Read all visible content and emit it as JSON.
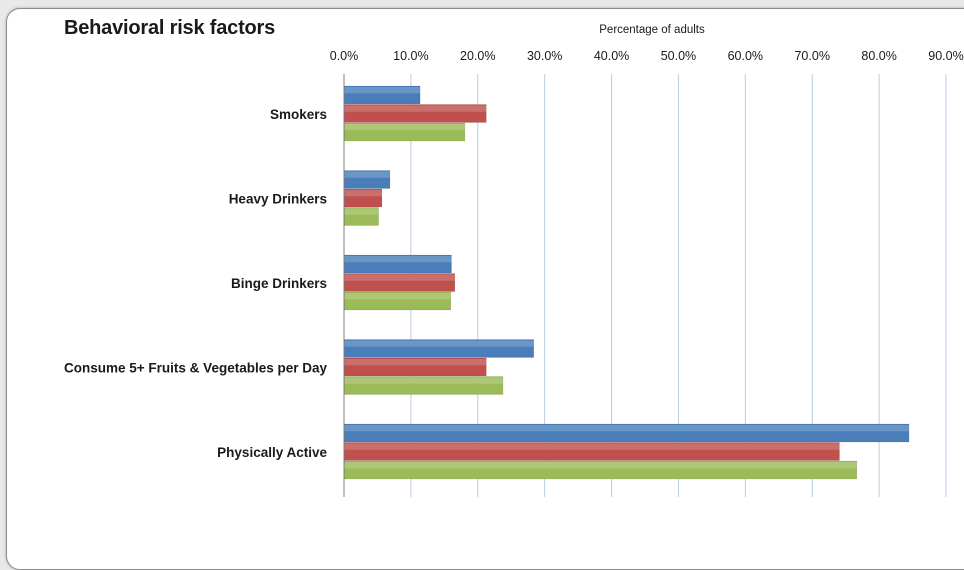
{
  "chart_data": {
    "type": "bar",
    "orientation": "horizontal",
    "title": "Behavioral risk factors",
    "xlabel": "Percentage of adults",
    "ylabel": "",
    "xaxis_position": "top",
    "xlim": [
      0,
      90
    ],
    "x_ticks": [
      "0.0%",
      "10.0%",
      "20.0%",
      "30.0%",
      "40.0%",
      "50.0%",
      "60.0%",
      "70.0%",
      "80.0%",
      "90.0%"
    ],
    "grid": true,
    "legend": "none",
    "categories": [
      "Smokers",
      "Heavy Drinkers",
      "Binge Drinkers",
      "Consume 5+ Fruits & Vegetables per Day",
      "Physically Active"
    ],
    "series": [
      {
        "color": "#4a7ebb",
        "values": [
          11.3,
          6.8,
          16.0,
          28.3,
          84.4
        ]
      },
      {
        "color": "#c0504d",
        "values": [
          21.2,
          5.6,
          16.5,
          21.2,
          74.0
        ]
      },
      {
        "color": "#9bbb59",
        "values": [
          18.0,
          5.1,
          15.9,
          23.7,
          76.6
        ]
      }
    ]
  }
}
